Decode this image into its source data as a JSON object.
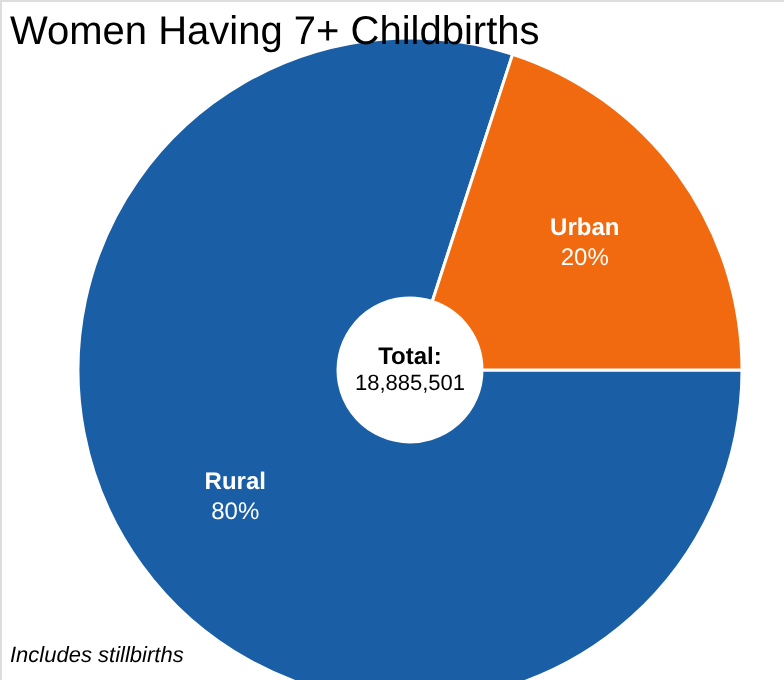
{
  "chart_data": {
    "type": "donut",
    "title": "Women Having 7+ Childbirths",
    "categories": [
      "Rural",
      "Urban"
    ],
    "values": [
      80,
      20
    ],
    "colors": [
      "#1a5ea6",
      "#f26a0f"
    ],
    "value_labels": [
      "80%",
      "20%"
    ],
    "annotations": [
      "Total:",
      "18,885,501",
      "Includes stillbirths"
    ]
  }
}
